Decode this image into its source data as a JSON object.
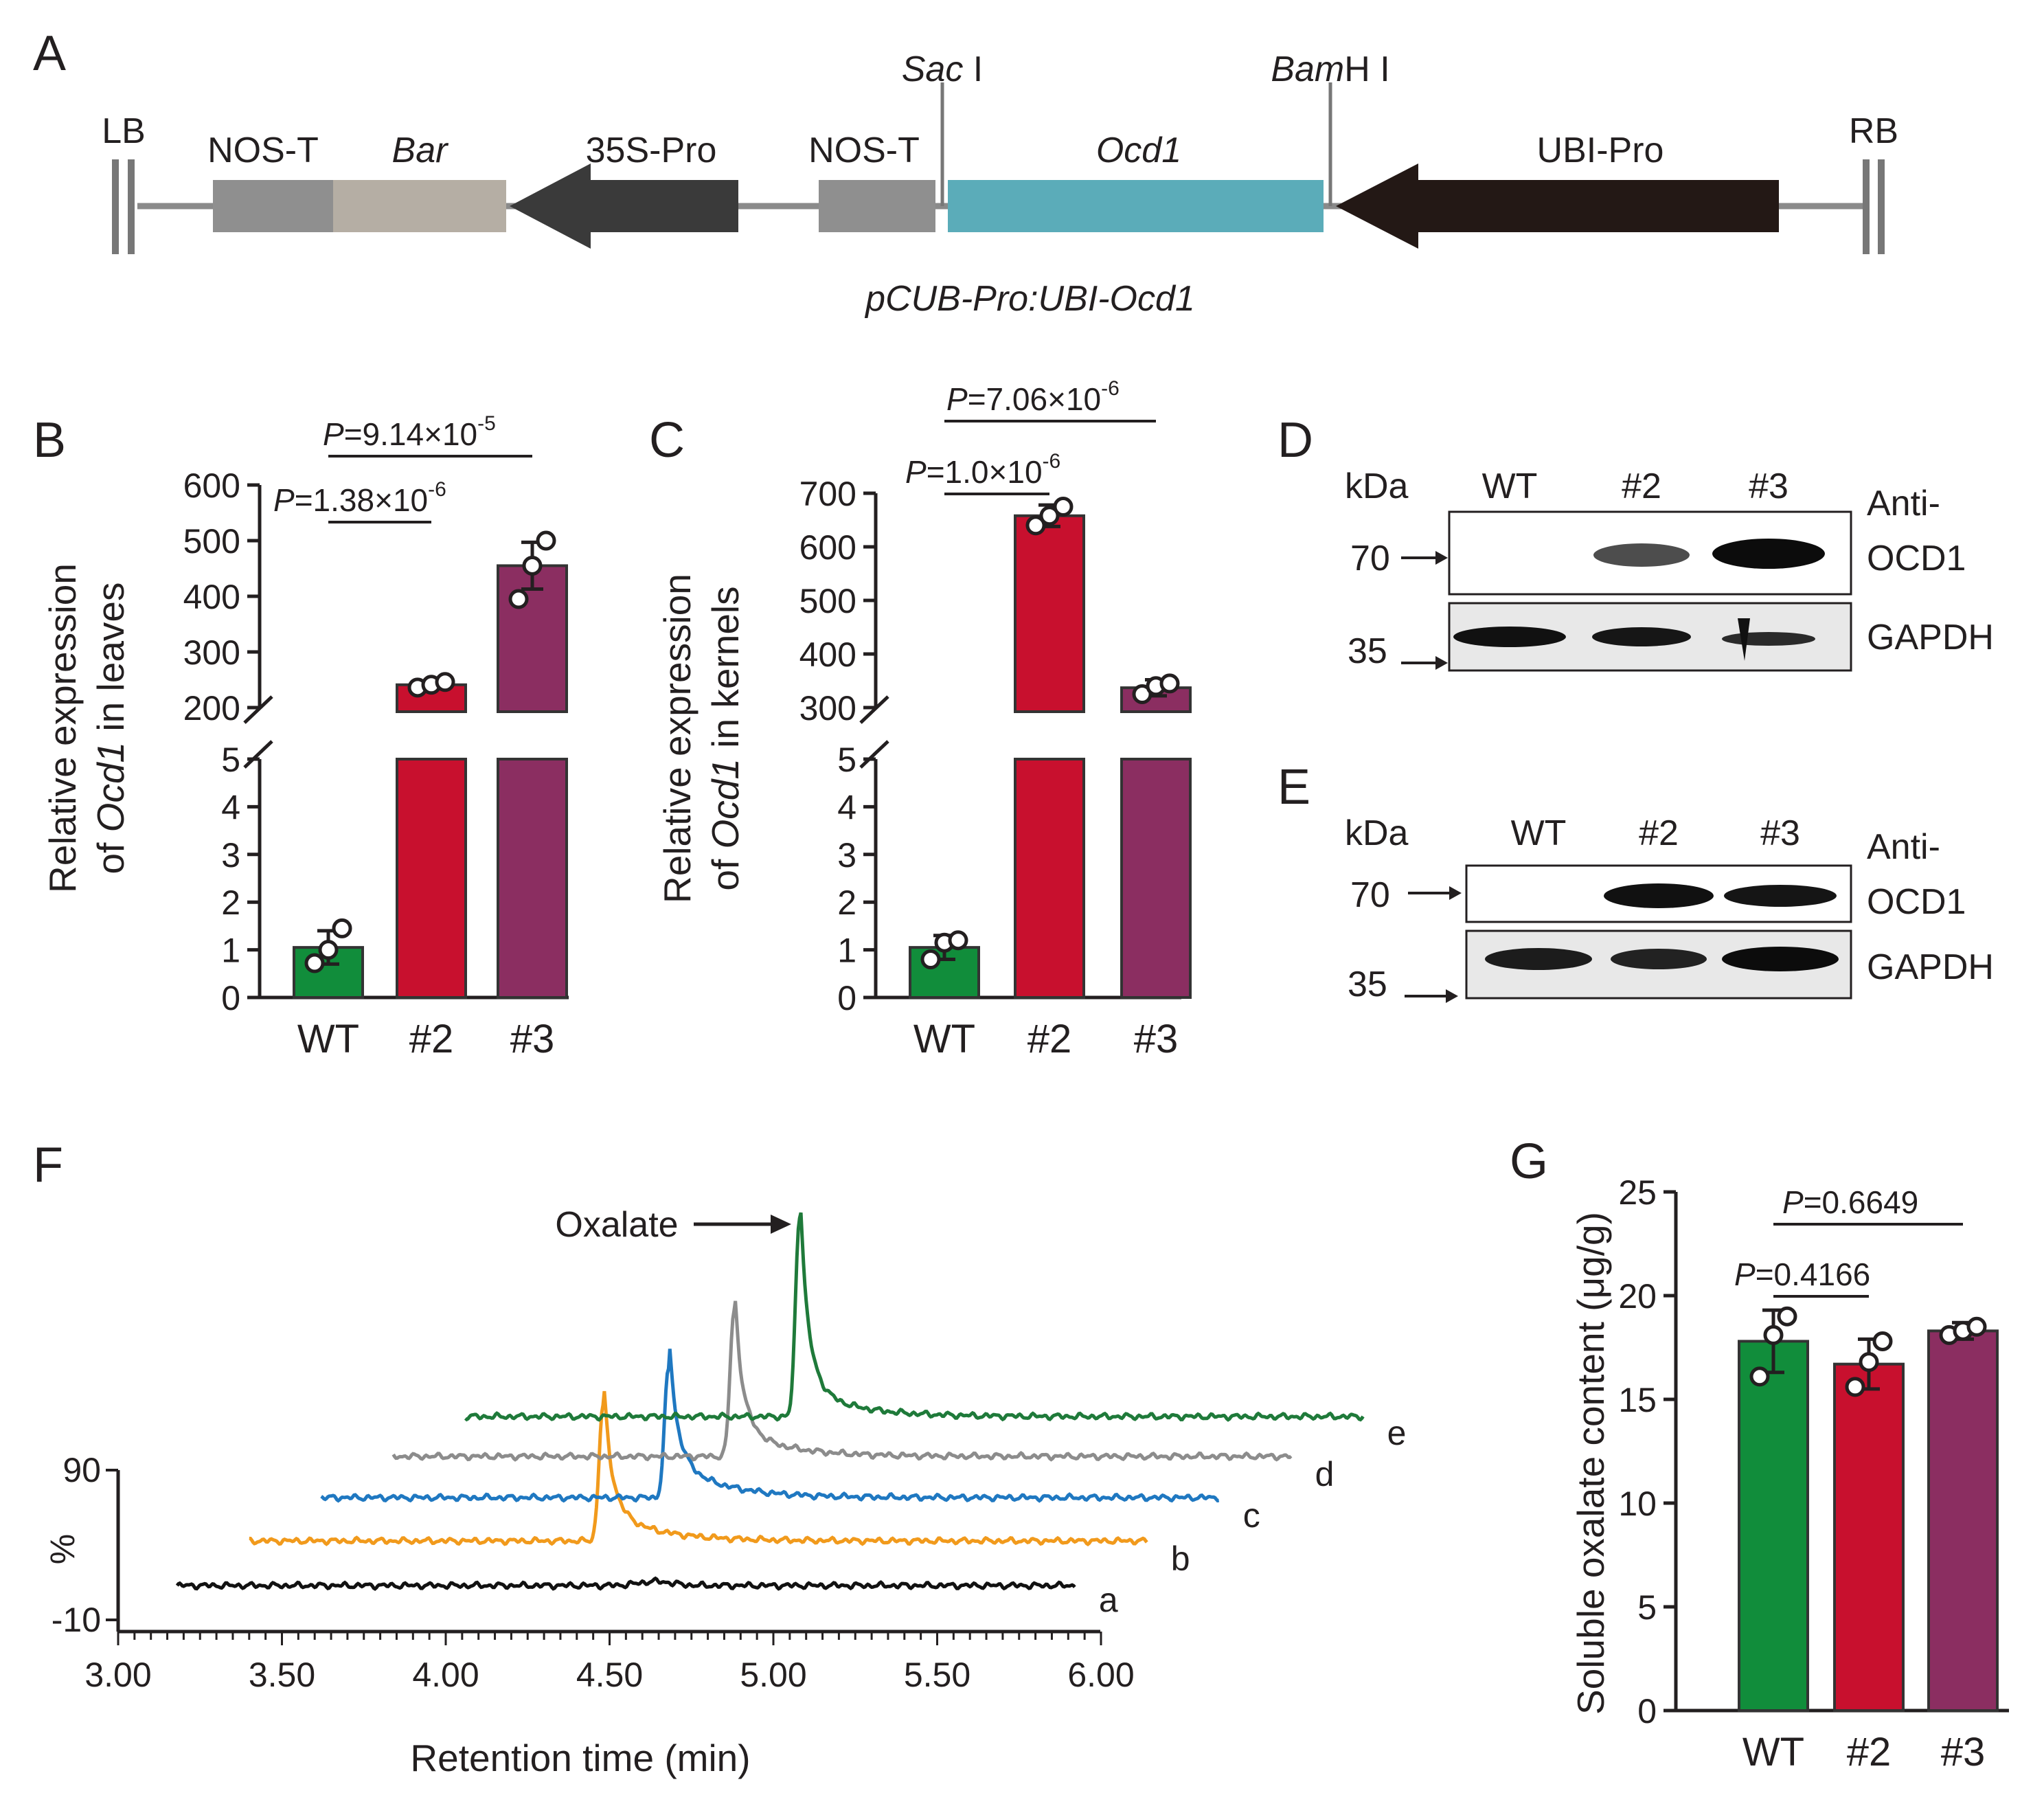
{
  "colors": {
    "wt_green": "#118d3b",
    "line2_red": "#c8102e",
    "line3_purple": "#8b2e61",
    "ocd1_teal": "#5bacb9",
    "bar_tan": "#b5aea4",
    "nos_gray": "#8f8f8f",
    "pro_dark": "#3a3a3a",
    "ubi_black": "#231815",
    "trace_a": "#111111",
    "trace_b": "#f19a1c",
    "trace_c": "#1f78c1",
    "trace_d": "#8c8c8c",
    "trace_e": "#1f7a3a"
  },
  "panels": {
    "A": {
      "letter": "A",
      "lb": "LB",
      "rb": "RB",
      "nos_t_left": "NOS-T",
      "bar": "Bar",
      "pro35s": "35S-Pro",
      "nos_t_mid": "NOS-T",
      "ocd1": "Ocd1",
      "ubi_pro": "UBI-Pro",
      "sac_italic": "Sac",
      "sac_rest": " I",
      "bam_italic": "Bam",
      "bam_rest": "H I",
      "construct_name": "pCUB-Pro:UBI-Ocd1"
    },
    "B": {
      "letter": "B",
      "ylabel_line1": "Relative expression",
      "ylabel_pre": "of ",
      "ylabel_gene": "Ocd1",
      "ylabel_post": " in leaves"
    },
    "C": {
      "letter": "C",
      "ylabel_line1": "Relative expression",
      "ylabel_pre": "of ",
      "ylabel_gene": "Ocd1",
      "ylabel_post": " in kernels"
    },
    "D": {
      "letter": "D",
      "kda": "kDa",
      "lanes": [
        "WT",
        "#2",
        "#3"
      ],
      "marker_high": "70",
      "marker_low": "35",
      "antibody_line1": "Anti-",
      "antibody_line2": "OCD1",
      "loading": "GAPDH"
    },
    "E": {
      "letter": "E",
      "kda": "kDa",
      "lanes": [
        "WT",
        "#2",
        "#3"
      ],
      "marker_high": "70",
      "marker_low": "35",
      "antibody_line1": "Anti-",
      "antibody_line2": "OCD1",
      "loading": "GAPDH"
    },
    "F": {
      "letter": "F",
      "peak_label": "Oxalate"
    },
    "G": {
      "letter": "G"
    }
  },
  "chart_data": [
    {
      "id": "B",
      "type": "bar",
      "categories": [
        "WT",
        "#2",
        "#3"
      ],
      "values": [
        1.05,
        241,
        455
      ],
      "error_sd": [
        0.35,
        6,
        42
      ],
      "points": [
        [
          0.72,
          1.0,
          1.45
        ],
        [
          236,
          241,
          246
        ],
        [
          395,
          455,
          500
        ]
      ],
      "xlabel": "",
      "ylabel": "Relative expression of Ocd1 in leaves",
      "axis_lower": {
        "range": [
          0,
          5
        ],
        "ticks": [
          0,
          1,
          2,
          3,
          4,
          5
        ]
      },
      "axis_upper": {
        "range": [
          200,
          600
        ],
        "ticks": [
          200,
          300,
          400,
          500,
          600
        ]
      },
      "broken_axis": true,
      "comparisons": [
        {
          "pair": [
            "WT",
            "#2"
          ],
          "p_prefix": "P",
          "p_value": "=1.38×10",
          "p_exp": "-6"
        },
        {
          "pair": [
            "WT",
            "#3"
          ],
          "p_prefix": "P",
          "p_value": "=9.14×10",
          "p_exp": "-5"
        }
      ]
    },
    {
      "id": "C",
      "type": "bar",
      "categories": [
        "WT",
        "#2",
        "#3"
      ],
      "values": [
        1.05,
        658,
        337
      ],
      "error_sd": [
        0.25,
        20,
        15
      ],
      "points": [
        [
          0.8,
          1.15,
          1.2
        ],
        [
          640,
          658,
          675
        ],
        [
          325,
          340,
          345
        ]
      ],
      "xlabel": "",
      "ylabel": "Relative expression of Ocd1 in kernels",
      "axis_lower": {
        "range": [
          0,
          5
        ],
        "ticks": [
          0,
          1,
          2,
          3,
          4,
          5
        ]
      },
      "axis_upper": {
        "range": [
          300,
          700
        ],
        "ticks": [
          300,
          400,
          500,
          600,
          700
        ]
      },
      "broken_axis": true,
      "comparisons": [
        {
          "pair": [
            "WT",
            "#2"
          ],
          "p_prefix": "P",
          "p_value": "=1.0×10",
          "p_exp": "-6"
        },
        {
          "pair": [
            "WT",
            "#3"
          ],
          "p_prefix": "P",
          "p_value": "=7.06×10",
          "p_exp": "-6"
        }
      ]
    },
    {
      "id": "F",
      "type": "line",
      "title": "",
      "xlabel": "Retention time (min)",
      "ylabel": "%",
      "xlim": [
        3.0,
        6.0
      ],
      "xticks": [
        "3.00",
        "3.50",
        "4.00",
        "4.50",
        "5.00",
        "5.50",
        "6.00"
      ],
      "yticks": [
        "90",
        "-10"
      ],
      "series": [
        {
          "name": "a",
          "peak_time": null,
          "peak_height": 0
        },
        {
          "name": "b",
          "peak_time": 4.48,
          "peak_height": 100
        },
        {
          "name": "c",
          "peak_time": 4.68,
          "peak_height": 100
        },
        {
          "name": "d",
          "peak_time": 4.88,
          "peak_height": 100
        },
        {
          "name": "e",
          "peak_time": 5.08,
          "peak_height": 100
        }
      ],
      "annotation": "Oxalate"
    },
    {
      "id": "G",
      "type": "bar",
      "categories": [
        "WT",
        "#2",
        "#3"
      ],
      "values": [
        17.8,
        16.7,
        18.3
      ],
      "error_sd": [
        1.5,
        1.2,
        0.4
      ],
      "points": [
        [
          16.1,
          18.1,
          19.0
        ],
        [
          15.6,
          16.8,
          17.8
        ],
        [
          18.1,
          18.3,
          18.5
        ]
      ],
      "xlabel": "",
      "ylabel": "Soluble oxalate content (μg/g)",
      "ylim": [
        0,
        25
      ],
      "yticks": [
        0,
        5,
        10,
        15,
        20,
        25
      ],
      "comparisons": [
        {
          "pair": [
            "WT",
            "#2"
          ],
          "p_prefix": "P",
          "p_value": "=0.4166"
        },
        {
          "pair": [
            "WT",
            "#3"
          ],
          "p_prefix": "P",
          "p_value": "=0.6649"
        }
      ]
    }
  ]
}
